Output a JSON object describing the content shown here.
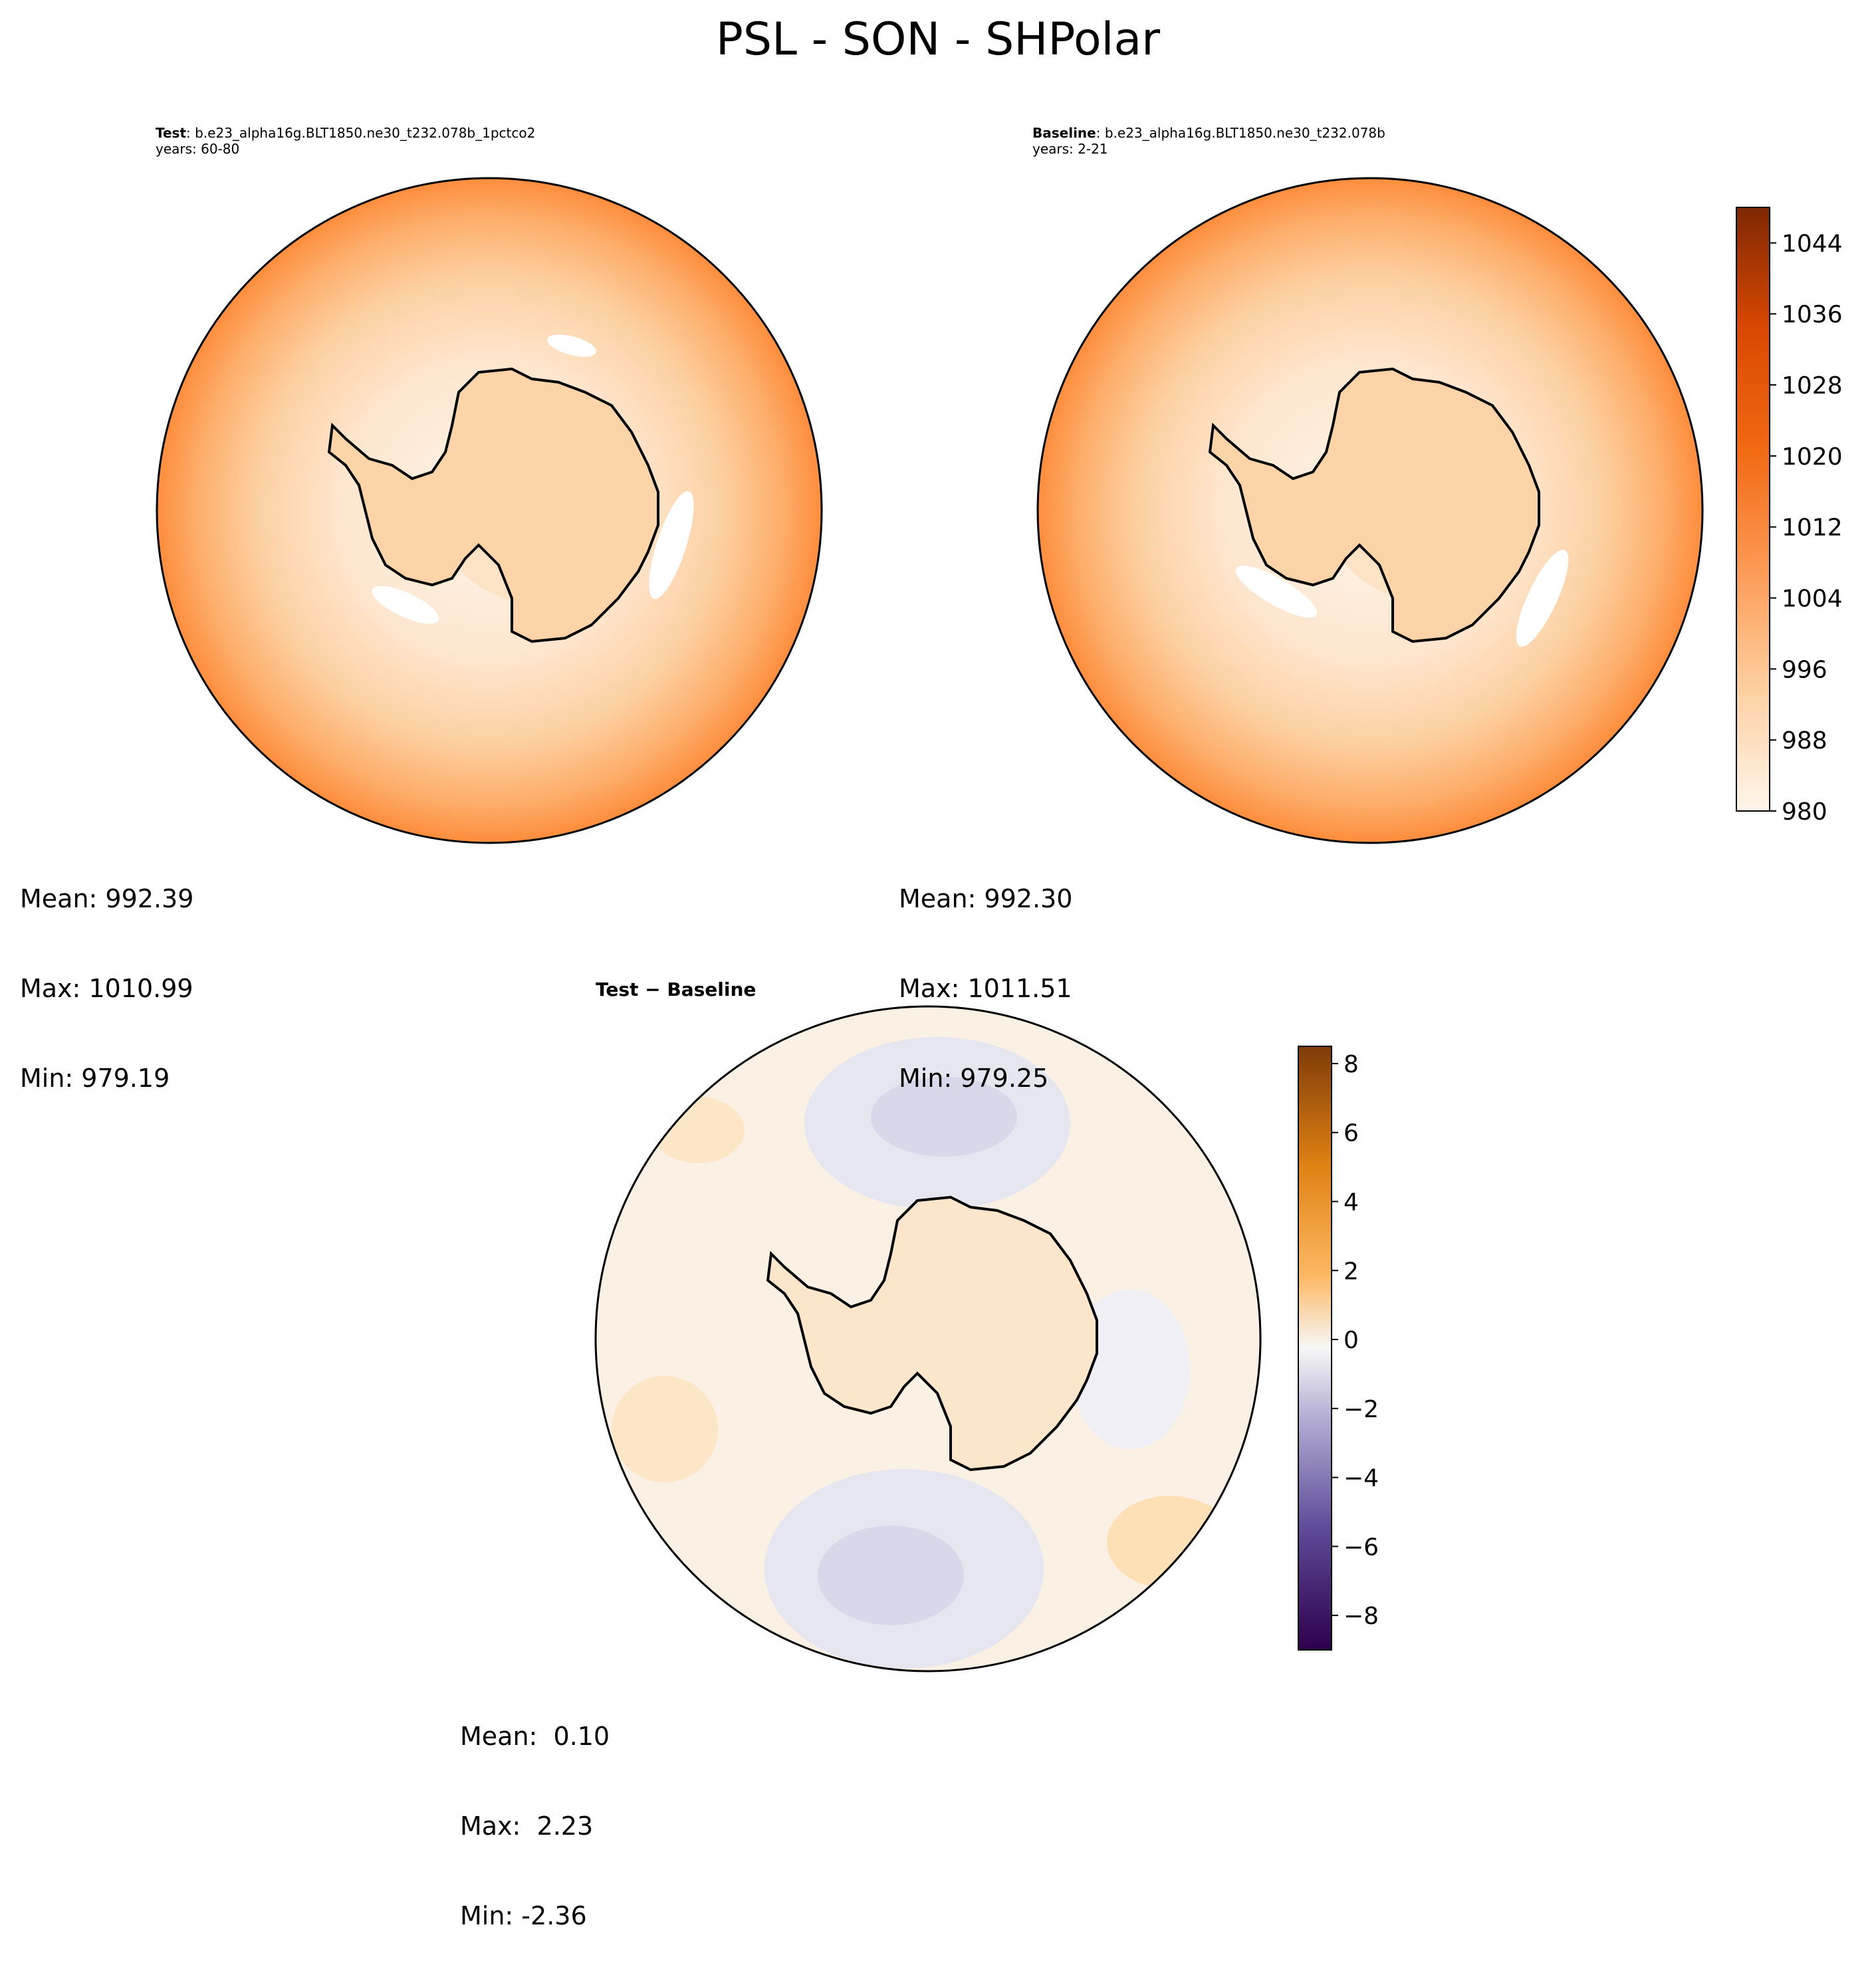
{
  "title": "PSL - SON - SHPolar",
  "panels": {
    "test": {
      "label": "Test",
      "case": ": b.e23_alpha16g.BLT1850.ne30_t232.078b_1pctco2",
      "years": "years: 60-80",
      "stats": {
        "mean": "Mean: 992.39",
        "max": "Max: 1010.99",
        "min": "Min: 979.19"
      }
    },
    "baseline": {
      "label": "Baseline",
      "case": ": b.e23_alpha16g.BLT1850.ne30_t232.078b",
      "years": "years: 2-21",
      "stats": {
        "mean": "Mean: 992.30",
        "max": "Max: 1011.51",
        "min": "Min: 979.25"
      }
    },
    "diff": {
      "label": "Test − Baseline",
      "stats": {
        "mean": "Mean:  0.10",
        "max": "Max:  2.23",
        "min": "Min: -2.36"
      }
    }
  },
  "chart_data": [
    {
      "type": "heatmap",
      "panel": "test",
      "projection": "south-polar-stereographic",
      "fields": {
        "mean": 992.39,
        "max": 1010.99,
        "min": 979.19
      },
      "colormap": "Oranges",
      "levels": [
        980,
        1048
      ],
      "colorbar_ticks": [
        980,
        988,
        996,
        1004,
        1012,
        1020,
        1028,
        1036,
        1044
      ]
    },
    {
      "type": "heatmap",
      "panel": "baseline",
      "projection": "south-polar-stereographic",
      "fields": {
        "mean": 992.3,
        "max": 1011.51,
        "min": 979.25
      },
      "colormap": "Oranges",
      "levels": [
        980,
        1048
      ],
      "colorbar_ticks": [
        980,
        988,
        996,
        1004,
        1012,
        1020,
        1028,
        1036,
        1044
      ]
    },
    {
      "type": "heatmap",
      "panel": "diff",
      "projection": "south-polar-stereographic",
      "fields": {
        "mean": 0.1,
        "max": 2.23,
        "min": -2.36
      },
      "colormap": "PuOr_r",
      "levels": [
        -9,
        8.5
      ],
      "colorbar_ticks": [
        "8",
        "6",
        "4",
        "2",
        "0",
        "−2",
        "−4",
        "−6",
        "−8"
      ]
    }
  ],
  "colors": {
    "orange_dark": "#7f2704",
    "orange_mid": "#fd8d3c",
    "orange_light": "#fff5eb",
    "purple_dark": "#2d004b",
    "diff_pos": "#fde0b6",
    "diff_neg": "#dcdcec"
  }
}
